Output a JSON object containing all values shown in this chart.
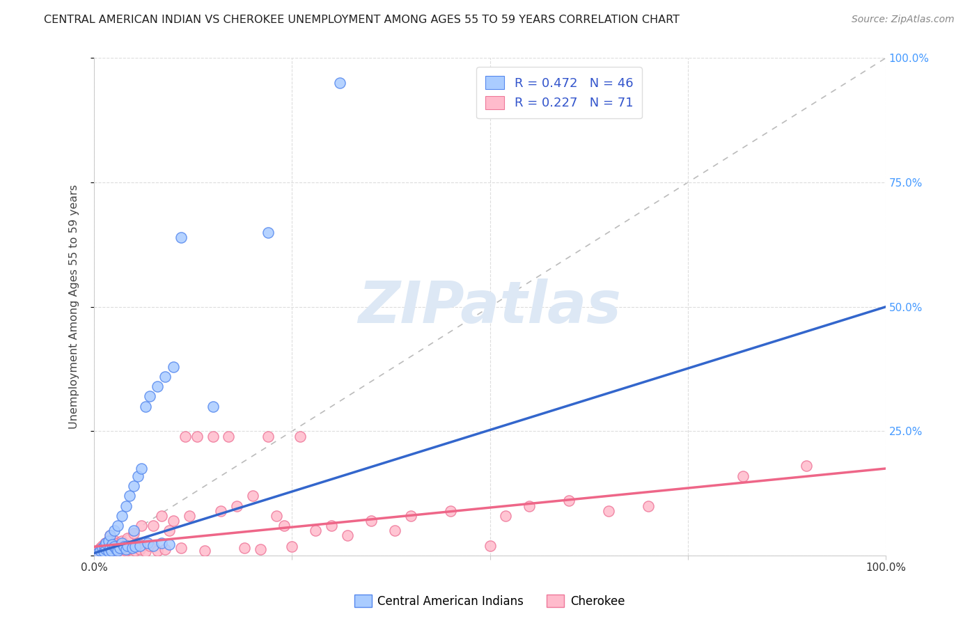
{
  "title": "CENTRAL AMERICAN INDIAN VS CHEROKEE UNEMPLOYMENT AMONG AGES 55 TO 59 YEARS CORRELATION CHART",
  "source": "Source: ZipAtlas.com",
  "ylabel": "Unemployment Among Ages 55 to 59 years",
  "xlim": [
    0,
    1.0
  ],
  "ylim": [
    0,
    1.0
  ],
  "xticks": [
    0.0,
    0.25,
    0.5,
    0.75,
    1.0
  ],
  "yticks": [
    0.0,
    0.25,
    0.5,
    0.75,
    1.0
  ],
  "x_show_labels": [
    "0.0%",
    "",
    "",
    "",
    "100.0%"
  ],
  "right_yticklabels": [
    "",
    "25.0%",
    "50.0%",
    "75.0%",
    "100.0%"
  ],
  "background_color": "#ffffff",
  "grid_color": "#dddddd",
  "blue_fill": "#aaccff",
  "blue_edge": "#5588ee",
  "pink_fill": "#ffbbcc",
  "pink_edge": "#ee7799",
  "blue_line": "#3366cc",
  "pink_line": "#ee6688",
  "diag_color": "#bbbbbb",
  "watermark_color": "#dde8f5",
  "right_tick_color": "#4499ff",
  "legend_label_blue": "Central American Indians",
  "legend_label_pink": "Cherokee",
  "legend_r_blue": "R = 0.472",
  "legend_n_blue": "N = 46",
  "legend_r_pink": "R = 0.227",
  "legend_n_pink": "N = 71",
  "title_color": "#222222",
  "source_color": "#888888",
  "blue_trendline_x": [
    0.0,
    1.0
  ],
  "blue_trendline_y": [
    0.005,
    0.5
  ],
  "pink_trendline_x": [
    0.0,
    1.0
  ],
  "pink_trendline_y": [
    0.018,
    0.175
  ],
  "blue_x": [
    0.005,
    0.008,
    0.01,
    0.012,
    0.013,
    0.015,
    0.015,
    0.018,
    0.018,
    0.02,
    0.02,
    0.022,
    0.023,
    0.025,
    0.025,
    0.028,
    0.03,
    0.03,
    0.032,
    0.035,
    0.035,
    0.038,
    0.04,
    0.04,
    0.042,
    0.045,
    0.048,
    0.05,
    0.05,
    0.052,
    0.055,
    0.058,
    0.06,
    0.065,
    0.068,
    0.07,
    0.075,
    0.08,
    0.085,
    0.09,
    0.095,
    0.1,
    0.11,
    0.15,
    0.22,
    0.31
  ],
  "blue_y": [
    0.005,
    0.01,
    0.015,
    0.008,
    0.02,
    0.012,
    0.025,
    0.03,
    0.008,
    0.015,
    0.04,
    0.01,
    0.022,
    0.018,
    0.05,
    0.012,
    0.01,
    0.06,
    0.015,
    0.025,
    0.08,
    0.018,
    0.012,
    0.1,
    0.02,
    0.12,
    0.015,
    0.05,
    0.14,
    0.018,
    0.16,
    0.02,
    0.175,
    0.3,
    0.025,
    0.32,
    0.02,
    0.34,
    0.025,
    0.36,
    0.022,
    0.38,
    0.64,
    0.3,
    0.65,
    0.95
  ],
  "pink_x": [
    0.005,
    0.008,
    0.01,
    0.012,
    0.014,
    0.015,
    0.016,
    0.018,
    0.018,
    0.02,
    0.02,
    0.022,
    0.024,
    0.025,
    0.026,
    0.028,
    0.03,
    0.03,
    0.032,
    0.035,
    0.035,
    0.038,
    0.04,
    0.042,
    0.045,
    0.048,
    0.05,
    0.052,
    0.055,
    0.058,
    0.06,
    0.065,
    0.07,
    0.075,
    0.08,
    0.085,
    0.09,
    0.095,
    0.1,
    0.11,
    0.115,
    0.12,
    0.13,
    0.14,
    0.15,
    0.16,
    0.17,
    0.18,
    0.19,
    0.2,
    0.21,
    0.22,
    0.23,
    0.24,
    0.25,
    0.26,
    0.28,
    0.3,
    0.32,
    0.35,
    0.38,
    0.4,
    0.45,
    0.5,
    0.52,
    0.55,
    0.6,
    0.65,
    0.7,
    0.82,
    0.9
  ],
  "pink_y": [
    0.01,
    0.015,
    0.02,
    0.008,
    0.025,
    0.005,
    0.012,
    0.03,
    0.008,
    0.018,
    0.04,
    0.01,
    0.022,
    0.015,
    0.03,
    0.008,
    0.012,
    0.025,
    0.018,
    0.008,
    0.03,
    0.015,
    0.01,
    0.035,
    0.012,
    0.02,
    0.045,
    0.01,
    0.025,
    0.012,
    0.06,
    0.008,
    0.02,
    0.06,
    0.01,
    0.08,
    0.012,
    0.05,
    0.07,
    0.015,
    0.24,
    0.08,
    0.24,
    0.01,
    0.24,
    0.09,
    0.24,
    0.1,
    0.015,
    0.12,
    0.012,
    0.24,
    0.08,
    0.06,
    0.018,
    0.24,
    0.05,
    0.06,
    0.04,
    0.07,
    0.05,
    0.08,
    0.09,
    0.02,
    0.08,
    0.1,
    0.11,
    0.09,
    0.1,
    0.16,
    0.18
  ]
}
